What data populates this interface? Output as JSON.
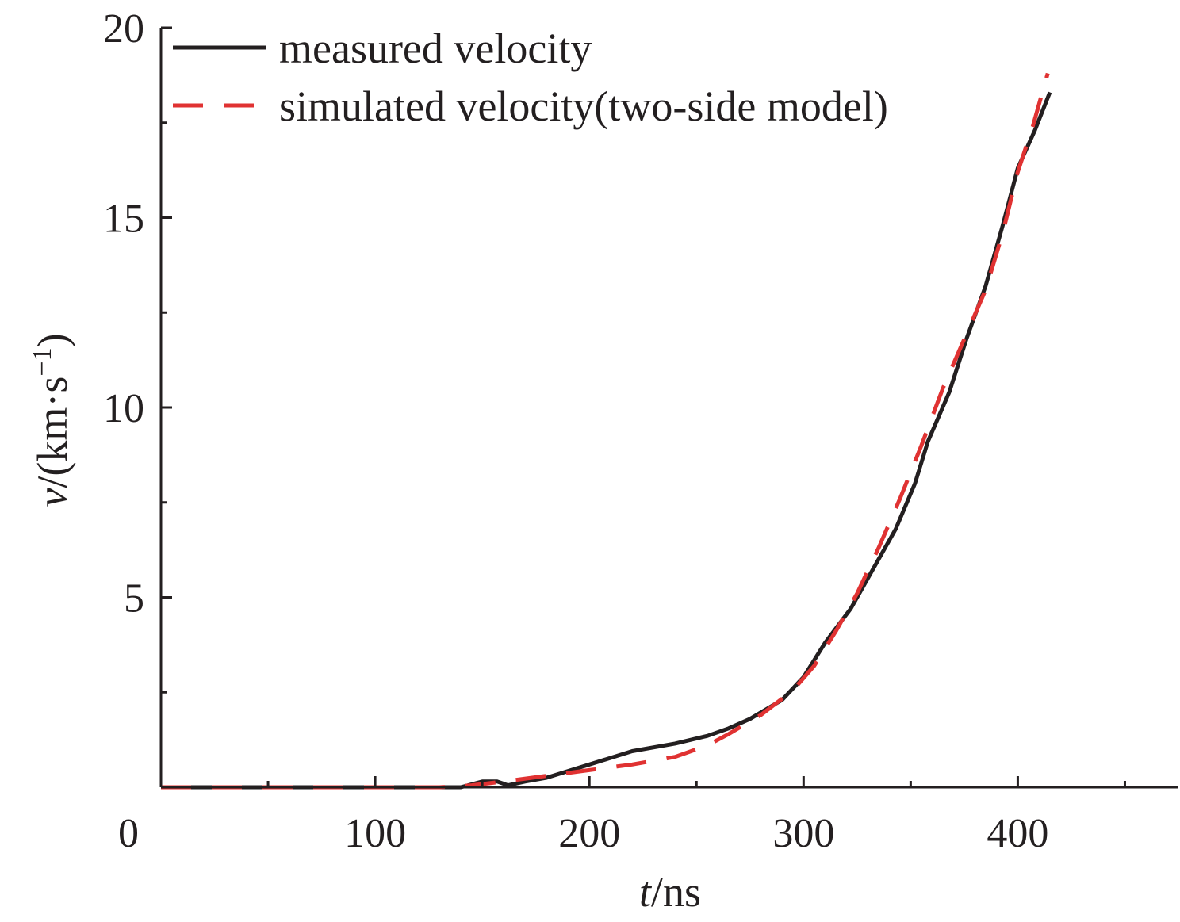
{
  "chart_data": {
    "type": "line",
    "xlabel": {
      "var": "t",
      "unit": "/ns"
    },
    "ylabel": {
      "var": "v",
      "unit_pre": "/(km·s",
      "sup": "−1",
      "unit_post": ")"
    },
    "xlim": [
      0,
      475
    ],
    "ylim": [
      0,
      20
    ],
    "x_ticks": [
      0,
      100,
      200,
      300,
      400
    ],
    "x_minor_ticks": [
      50,
      150,
      250,
      350,
      450
    ],
    "y_ticks": [
      5,
      10,
      15,
      20
    ],
    "y_minor_ticks": [
      2.5,
      7.5,
      12.5,
      17.5
    ],
    "grid": false,
    "legend": "top-left",
    "series": [
      {
        "name": "measured velocity",
        "color": "#231f20",
        "dash": "solid",
        "points": [
          [
            0,
            0
          ],
          [
            140,
            0
          ],
          [
            150,
            0.15
          ],
          [
            157,
            0.15
          ],
          [
            162,
            0.05
          ],
          [
            170,
            0.15
          ],
          [
            180,
            0.25
          ],
          [
            200,
            0.6
          ],
          [
            220,
            0.95
          ],
          [
            240,
            1.15
          ],
          [
            255,
            1.35
          ],
          [
            265,
            1.55
          ],
          [
            275,
            1.8
          ],
          [
            290,
            2.3
          ],
          [
            300,
            2.9
          ],
          [
            310,
            3.8
          ],
          [
            322,
            4.7
          ],
          [
            332,
            5.7
          ],
          [
            343,
            6.8
          ],
          [
            352,
            8.0
          ],
          [
            358,
            9.1
          ],
          [
            368,
            10.4
          ],
          [
            376,
            11.8
          ],
          [
            385,
            13.2
          ],
          [
            393,
            14.8
          ],
          [
            400,
            16.3
          ],
          [
            408,
            17.3
          ],
          [
            415,
            18.3
          ]
        ]
      },
      {
        "name": "simulated velocity(two-side model)",
        "color": "#e03232",
        "dash": "dashed",
        "points": [
          [
            0,
            0
          ],
          [
            130,
            0
          ],
          [
            145,
            0.05
          ],
          [
            160,
            0.15
          ],
          [
            180,
            0.3
          ],
          [
            200,
            0.45
          ],
          [
            220,
            0.6
          ],
          [
            240,
            0.8
          ],
          [
            255,
            1.1
          ],
          [
            265,
            1.4
          ],
          [
            280,
            1.9
          ],
          [
            295,
            2.55
          ],
          [
            305,
            3.2
          ],
          [
            315,
            4.1
          ],
          [
            325,
            5.1
          ],
          [
            335,
            6.3
          ],
          [
            345,
            7.6
          ],
          [
            355,
            9.0
          ],
          [
            365,
            10.5
          ],
          [
            375,
            11.8
          ],
          [
            385,
            13.1
          ],
          [
            393,
            14.6
          ],
          [
            400,
            16.2
          ],
          [
            407,
            17.4
          ],
          [
            414,
            18.8
          ]
        ]
      }
    ]
  }
}
